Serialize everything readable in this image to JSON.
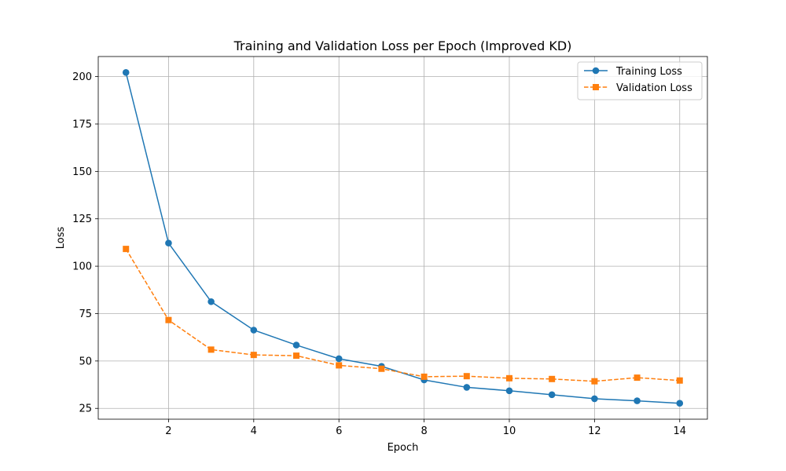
{
  "chart_data": {
    "type": "line",
    "title": "Training and Validation Loss per Epoch (Improved KD)",
    "xlabel": "Epoch",
    "ylabel": "Loss",
    "xlim": [
      0.35,
      14.65
    ],
    "ylim": [
      19.3,
      210.6
    ],
    "xticks": [
      2,
      4,
      6,
      8,
      10,
      12,
      14
    ],
    "yticks": [
      25,
      50,
      75,
      100,
      125,
      150,
      175,
      200
    ],
    "grid": true,
    "legend_position": "top-right",
    "x": [
      1,
      2,
      3,
      4,
      5,
      6,
      7,
      8,
      9,
      10,
      11,
      12,
      13,
      14
    ],
    "series": [
      {
        "name": "Training Loss",
        "color": "#1f77b4",
        "line_style": "solid",
        "marker": "circle",
        "values": [
          202.2,
          112.2,
          81.3,
          66.3,
          58.4,
          51.2,
          47.2,
          40.0,
          36.1,
          34.3,
          32.2,
          30.1,
          29.0,
          27.7
        ]
      },
      {
        "name": "Validation Loss",
        "color": "#ff7f0e",
        "line_style": "dashed",
        "marker": "square",
        "values": [
          109.1,
          71.6,
          56.0,
          53.2,
          52.8,
          47.7,
          45.9,
          41.7,
          42.0,
          40.9,
          40.5,
          39.3,
          41.2,
          39.7
        ]
      }
    ]
  }
}
